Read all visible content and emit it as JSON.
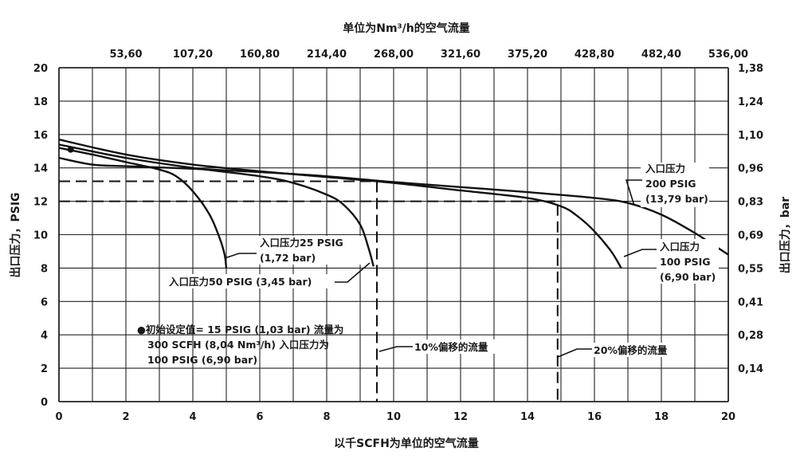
{
  "chart_data": {
    "type": "line",
    "title_top": "单位为Nm³/h的空气流量",
    "xlabel": "以千SCFH为单位的空气流量",
    "ylabel": "出口压力，PSIG",
    "ylabel_right": "出口压力，bar",
    "xlim": [
      0,
      20
    ],
    "ylim": [
      0,
      20
    ],
    "grid": true,
    "x_ticks": [
      "0",
      "2",
      "4",
      "6",
      "8",
      "10",
      "12",
      "14",
      "16",
      "18",
      "20"
    ],
    "y_ticks": [
      "0",
      "2",
      "4",
      "6",
      "8",
      "10",
      "12",
      "14",
      "16",
      "18",
      "20"
    ],
    "top_ticks": [
      "53,60",
      "107,20",
      "160,80",
      "214,40",
      "268,00",
      "321,60",
      "375,20",
      "428,80",
      "482,40",
      "536,00"
    ],
    "right_ticks": [
      "0,14",
      "0,28",
      "0,41",
      "0,55",
      "0,69",
      "0,83",
      "0,96",
      "1,10",
      "1,24",
      "1,38"
    ],
    "series": [
      {
        "name": "入口压力25 PSIG (1,72 bar)",
        "x": [
          0,
          1,
          2,
          3,
          3.5,
          4,
          4.5,
          4.8,
          4.95,
          5
        ],
        "y": [
          15.2,
          14.8,
          14.35,
          13.9,
          13.5,
          12.6,
          11.2,
          9.8,
          8.8,
          8.0
        ]
      },
      {
        "name": "入口压力50 PSIG (3,45 bar)",
        "x": [
          0,
          2,
          4,
          6,
          7,
          8,
          8.5,
          9,
          9.25,
          9.4
        ],
        "y": [
          15.4,
          14.6,
          14.0,
          13.5,
          13.1,
          12.4,
          11.8,
          10.6,
          9.2,
          8.1
        ]
      },
      {
        "name": "入口压力100 PSIG (6,90 bar)",
        "x": [
          0,
          2,
          4,
          6,
          8,
          10,
          12,
          14,
          15,
          15.5,
          16,
          16.5,
          16.8
        ],
        "y": [
          15.7,
          14.8,
          14.2,
          13.8,
          13.45,
          13.1,
          12.65,
          12.2,
          11.7,
          11.1,
          10.2,
          9.0,
          8.0
        ]
      },
      {
        "name": "入口压力200 PSIG (13,79 bar)",
        "x": [
          0,
          1,
          2,
          4,
          6,
          8,
          10,
          12,
          14,
          16,
          17,
          18,
          19,
          20
        ],
        "y": [
          14.6,
          14.2,
          14.1,
          13.95,
          13.75,
          13.5,
          13.15,
          12.85,
          12.55,
          12.2,
          11.9,
          11.2,
          10.1,
          8.8
        ]
      }
    ],
    "reference_lines": [
      {
        "label": "10%偏移的流量",
        "x": 9.5,
        "y": 13.2
      },
      {
        "label": "20%偏移的流量",
        "x": 14.9,
        "y": 12.0
      }
    ],
    "setpoint": {
      "x": 0.35,
      "y": 15.1,
      "lines": [
        "●初始设定值= 15 PSIG (1,03 bar) 流量为",
        "300 SCFH (8,04 Nm³/h) 入口压力为",
        "100 PSIG (6,90 bar)"
      ]
    },
    "labels": {
      "p25": [
        "入口压力25 PSIG",
        "(1,72 bar)"
      ],
      "p50": "入口压力50 PSIG (3,45 bar)",
      "p100": [
        "入口压力",
        "100 PSIG",
        "(6,90 bar)"
      ],
      "p200": [
        "入口压力",
        "200 PSIG",
        "(13,79 bar)"
      ]
    }
  }
}
